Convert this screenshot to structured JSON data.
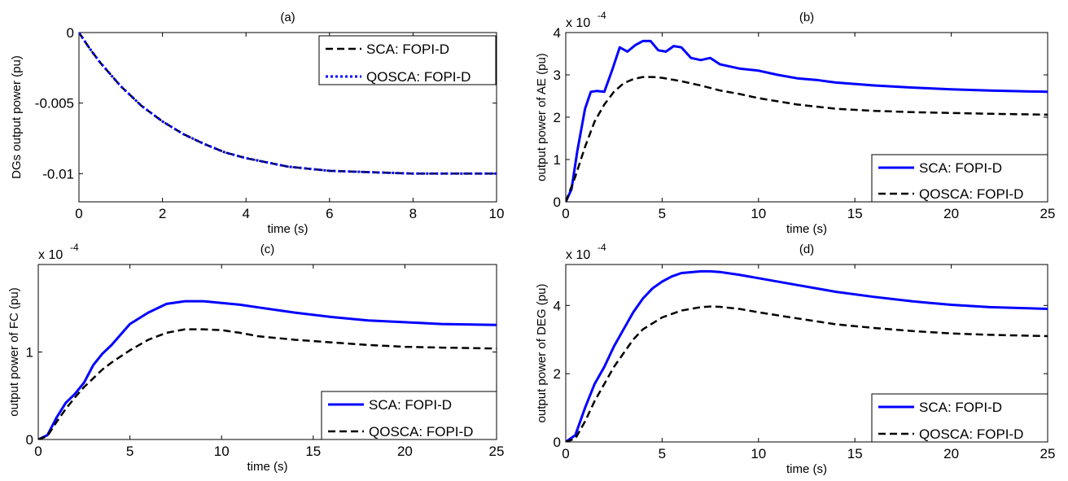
{
  "colors": {
    "SCA": "#0000ff",
    "QOSCA": "#000000"
  },
  "chart_data": [
    {
      "type": "line",
      "title": "(a)",
      "xlabel": "time (s)",
      "ylabel": "DGs output power (pu)",
      "xlim": [
        0,
        10
      ],
      "ylim": [
        -0.012,
        0
      ],
      "xticks": [
        0,
        2,
        4,
        6,
        8,
        10
      ],
      "yticks": [
        0,
        -0.005,
        -0.01
      ],
      "yticklabels": [
        "0",
        "-0.005",
        "-0.01"
      ],
      "exponent_label": "",
      "legend": "top-right",
      "grid": false,
      "series": [
        {
          "name": "SCA: FOPI-D",
          "style": "black dashed",
          "x": [
            0,
            0.25,
            0.5,
            1,
            1.5,
            2,
            2.5,
            3,
            3.5,
            4,
            5,
            6,
            7,
            8,
            9,
            10
          ],
          "y": [
            0,
            -0.0011,
            -0.0021,
            -0.0038,
            -0.0052,
            -0.0063,
            -0.0072,
            -0.0079,
            -0.0085,
            -0.0089,
            -0.0095,
            -0.0098,
            -0.0099,
            -0.01,
            -0.01,
            -0.01
          ]
        },
        {
          "name": "QOSCA: FOPI-D",
          "style": "blue dotted",
          "x": [
            0,
            0.25,
            0.5,
            1,
            1.5,
            2,
            2.5,
            3,
            3.5,
            4,
            5,
            6,
            7,
            8,
            9,
            10
          ],
          "y": [
            0,
            -0.0011,
            -0.0021,
            -0.0038,
            -0.0052,
            -0.0063,
            -0.0072,
            -0.0079,
            -0.0085,
            -0.0089,
            -0.0095,
            -0.0098,
            -0.0099,
            -0.01,
            -0.01,
            -0.01
          ]
        }
      ]
    },
    {
      "type": "line",
      "title": "(b)",
      "xlabel": "time (s)",
      "ylabel": "output power of AE (pu)",
      "xlim": [
        0,
        25
      ],
      "ylim": [
        0,
        4
      ],
      "xticks": [
        0,
        5,
        10,
        15,
        20,
        25
      ],
      "yticks": [
        0,
        1,
        2,
        3,
        4
      ],
      "yticklabels": [
        "0",
        "1",
        "2",
        "3",
        "4"
      ],
      "exponent_label": "x 10",
      "exponent_power": "-4",
      "legend": "bottom-right",
      "grid": false,
      "series": [
        {
          "name": "SCA: FOPI-D",
          "style": "blue solid",
          "x": [
            0,
            0.3,
            0.6,
            1,
            1.3,
            1.6,
            2,
            2.4,
            2.8,
            3.2,
            3.6,
            4,
            4.4,
            4.8,
            5.2,
            5.6,
            6,
            6.5,
            7,
            7.5,
            8,
            9,
            10,
            11,
            12,
            13,
            14,
            16,
            18,
            20,
            22,
            25
          ],
          "y": [
            0,
            0.3,
            1.2,
            2.2,
            2.6,
            2.62,
            2.6,
            3.1,
            3.65,
            3.55,
            3.7,
            3.8,
            3.8,
            3.58,
            3.55,
            3.68,
            3.65,
            3.4,
            3.35,
            3.4,
            3.25,
            3.15,
            3.1,
            3.0,
            2.92,
            2.88,
            2.82,
            2.75,
            2.7,
            2.66,
            2.63,
            2.6
          ]
        },
        {
          "name": "QOSCA: FOPI-D",
          "style": "black dashed",
          "x": [
            0,
            0.5,
            1,
            1.5,
            2,
            2.5,
            3,
            3.5,
            4,
            4.5,
            5,
            6,
            7,
            8,
            9,
            10,
            12,
            14,
            16,
            18,
            20,
            22,
            25
          ],
          "y": [
            0,
            0.6,
            1.3,
            1.9,
            2.3,
            2.6,
            2.8,
            2.9,
            2.95,
            2.95,
            2.93,
            2.85,
            2.75,
            2.63,
            2.55,
            2.45,
            2.3,
            2.2,
            2.15,
            2.12,
            2.1,
            2.08,
            2.06
          ]
        }
      ]
    },
    {
      "type": "line",
      "title": "(c)",
      "xlabel": "time (s)",
      "ylabel": "output power of FC (pu)",
      "xlim": [
        0,
        25
      ],
      "ylim": [
        0,
        2
      ],
      "xticks": [
        0,
        5,
        10,
        15,
        20,
        25
      ],
      "yticks": [
        0,
        1
      ],
      "yticklabels": [
        "0",
        "1"
      ],
      "exponent_label": "x 10",
      "exponent_power": "-4",
      "legend": "bottom-right",
      "grid": false,
      "series": [
        {
          "name": "SCA: FOPI-D",
          "style": "blue solid",
          "x": [
            0,
            0.5,
            1,
            1.5,
            2,
            2.5,
            3,
            3.5,
            4,
            4.5,
            5,
            6,
            7,
            8,
            9,
            10,
            11,
            12,
            14,
            16,
            18,
            20,
            22,
            25
          ],
          "y": [
            0,
            0.05,
            0.25,
            0.42,
            0.52,
            0.65,
            0.85,
            0.98,
            1.08,
            1.2,
            1.32,
            1.45,
            1.55,
            1.58,
            1.58,
            1.56,
            1.54,
            1.51,
            1.45,
            1.4,
            1.36,
            1.34,
            1.32,
            1.31
          ]
        },
        {
          "name": "QOSCA: FOPI-D",
          "style": "black dashed",
          "x": [
            0,
            0.5,
            1,
            1.5,
            2,
            2.5,
            3,
            3.5,
            4,
            5,
            6,
            7,
            8,
            9,
            10,
            11,
            12,
            14,
            16,
            18,
            20,
            22,
            25
          ],
          "y": [
            0,
            0.04,
            0.2,
            0.35,
            0.48,
            0.6,
            0.7,
            0.8,
            0.88,
            1.02,
            1.14,
            1.22,
            1.26,
            1.26,
            1.25,
            1.22,
            1.18,
            1.14,
            1.11,
            1.08,
            1.06,
            1.05,
            1.04
          ]
        }
      ]
    },
    {
      "type": "line",
      "title": "(d)",
      "xlabel": "time (s)",
      "ylabel": "output power of DEG (pu)",
      "xlim": [
        0,
        25
      ],
      "ylim": [
        0,
        5.2
      ],
      "xticks": [
        0,
        5,
        10,
        15,
        20,
        25
      ],
      "yticks": [
        0,
        2,
        4
      ],
      "yticklabels": [
        "0",
        "2",
        "4"
      ],
      "exponent_label": "x 10",
      "exponent_power": "-4",
      "legend": "bottom-right",
      "grid": false,
      "series": [
        {
          "name": "SCA: FOPI-D",
          "style": "blue solid",
          "x": [
            0,
            0.5,
            1,
            1.5,
            2,
            2.5,
            3,
            3.5,
            4,
            4.5,
            5,
            5.5,
            6,
            7,
            7.5,
            8,
            9,
            10,
            12,
            14,
            16,
            18,
            20,
            22,
            25
          ],
          "y": [
            0,
            0.2,
            1.0,
            1.7,
            2.2,
            2.8,
            3.3,
            3.8,
            4.2,
            4.5,
            4.7,
            4.85,
            4.95,
            5.0,
            5.0,
            4.98,
            4.9,
            4.8,
            4.6,
            4.4,
            4.25,
            4.12,
            4.02,
            3.95,
            3.9
          ]
        },
        {
          "name": "QOSCA: FOPI-D",
          "style": "black dashed",
          "x": [
            0,
            0.5,
            1,
            1.5,
            2,
            2.5,
            3,
            3.5,
            4,
            5,
            6,
            7,
            7.5,
            8,
            9,
            10,
            12,
            14,
            16,
            18,
            20,
            22,
            25
          ],
          "y": [
            0,
            0.1,
            0.6,
            1.2,
            1.7,
            2.2,
            2.6,
            3.0,
            3.3,
            3.65,
            3.85,
            3.95,
            3.97,
            3.96,
            3.9,
            3.8,
            3.62,
            3.45,
            3.34,
            3.25,
            3.18,
            3.14,
            3.1
          ]
        }
      ]
    }
  ]
}
